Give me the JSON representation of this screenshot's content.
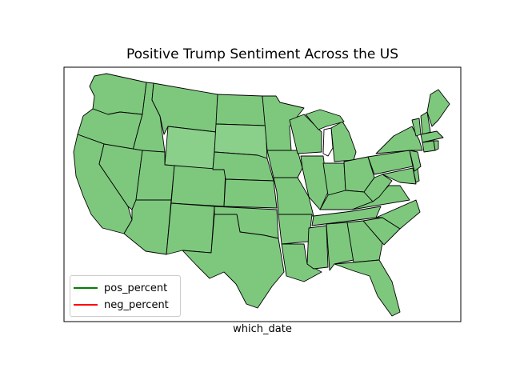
{
  "map": {
    "title": "Positive Trump Sentiment Across the US",
    "xlabel": "which_date",
    "legend": [
      {
        "label": "pos_percent",
        "color": "#008000"
      },
      {
        "label": "neg_percent",
        "color": "#ff0000"
      }
    ],
    "fill_color": "#7ec87e",
    "border_color": "#000000"
  }
}
